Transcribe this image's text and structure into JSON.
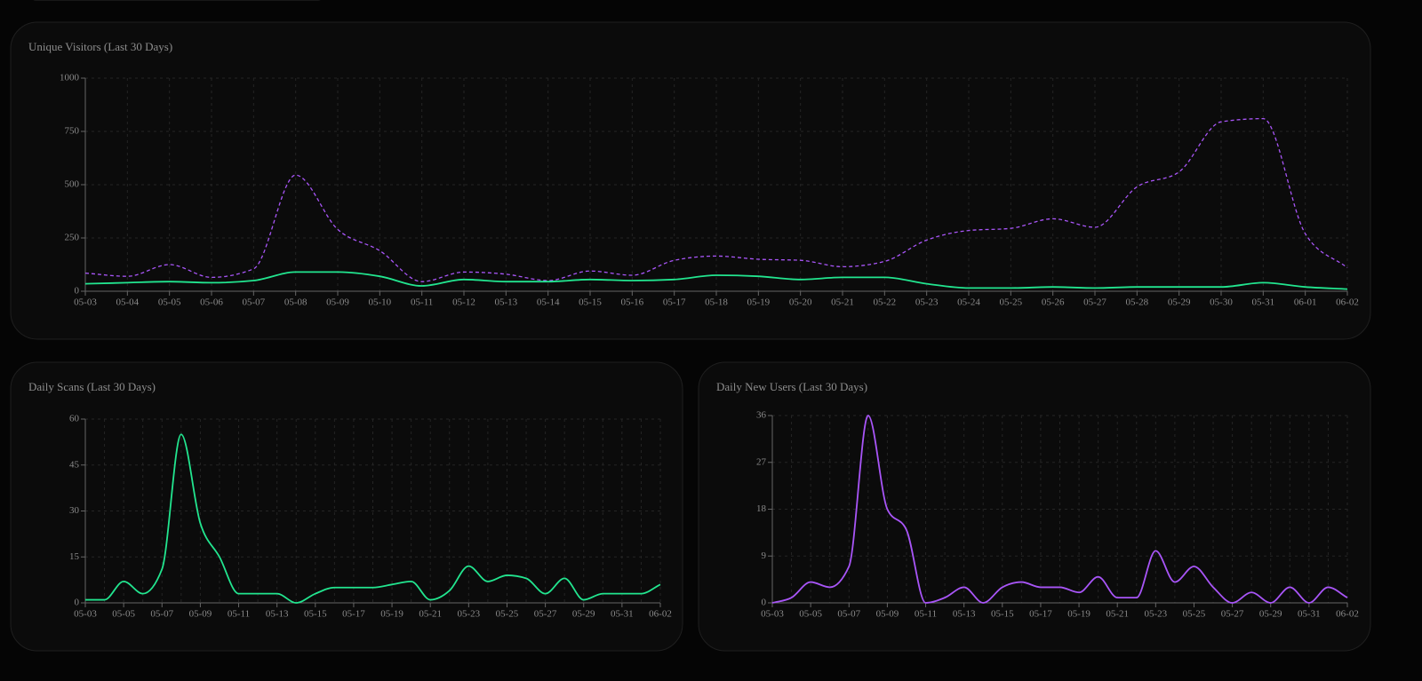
{
  "chart_data": [
    {
      "type": "line",
      "title": "Unique Visitors (Last 30 Days)",
      "categories": [
        "05-03",
        "05-04",
        "05-05",
        "05-06",
        "05-07",
        "05-08",
        "05-09",
        "05-10",
        "05-11",
        "05-12",
        "05-13",
        "05-14",
        "05-15",
        "05-16",
        "05-17",
        "05-18",
        "05-19",
        "05-20",
        "05-21",
        "05-22",
        "05-23",
        "05-24",
        "05-25",
        "05-26",
        "05-27",
        "05-28",
        "05-29",
        "05-30",
        "05-31",
        "06-01",
        "06-02"
      ],
      "series": [
        {
          "color": "#a855f7",
          "line_style": "dashed",
          "values": [
            85,
            70,
            125,
            65,
            105,
            545,
            290,
            190,
            45,
            90,
            80,
            50,
            95,
            75,
            145,
            165,
            150,
            145,
            115,
            140,
            240,
            285,
            295,
            340,
            300,
            490,
            560,
            795,
            810,
            270,
            110
          ]
        },
        {
          "color": "#22e58f",
          "line_style": "solid",
          "values": [
            35,
            40,
            45,
            40,
            50,
            90,
            90,
            70,
            25,
            55,
            45,
            45,
            55,
            50,
            55,
            75,
            70,
            55,
            65,
            65,
            35,
            15,
            15,
            20,
            15,
            20,
            20,
            20,
            40,
            20,
            10
          ]
        }
      ],
      "ylim": [
        0,
        1000
      ],
      "yticks": [
        0,
        250,
        500,
        750,
        1000
      ],
      "grid": true
    },
    {
      "type": "line",
      "title": "Daily Scans (Last 30 Days)",
      "categories": [
        "05-03",
        null,
        "05-05",
        null,
        "05-07",
        null,
        "05-09",
        null,
        "05-11",
        null,
        "05-13",
        null,
        "05-15",
        null,
        "05-17",
        null,
        "05-19",
        null,
        "05-21",
        null,
        "05-23",
        null,
        "05-25",
        null,
        "05-27",
        null,
        "05-29",
        null,
        "05-31",
        null,
        "06-02"
      ],
      "series": [
        {
          "color": "#22e58f",
          "line_style": "solid",
          "values": [
            1,
            1,
            7,
            3,
            11,
            55,
            26,
            15,
            3,
            3,
            3,
            0,
            3,
            5,
            5,
            5,
            6,
            7,
            1,
            4,
            12,
            7,
            9,
            8,
            3,
            8,
            1,
            3,
            3,
            3,
            6
          ]
        }
      ],
      "ylim": [
        0,
        60
      ],
      "yticks": [
        0,
        15,
        30,
        45,
        60
      ],
      "grid": true
    },
    {
      "type": "line",
      "title": "Daily New Users (Last 30 Days)",
      "categories": [
        "05-03",
        null,
        "05-05",
        null,
        "05-07",
        null,
        "05-09",
        null,
        "05-11",
        null,
        "05-13",
        null,
        "05-15",
        null,
        "05-17",
        null,
        "05-19",
        null,
        "05-21",
        null,
        "05-23",
        null,
        "05-25",
        null,
        "05-27",
        null,
        "05-29",
        null,
        "05-31",
        null,
        "06-02"
      ],
      "series": [
        {
          "color": "#a855f7",
          "line_style": "solid",
          "values": [
            0,
            1,
            4,
            3,
            7,
            36,
            18,
            14,
            0,
            1,
            3,
            0,
            3,
            4,
            3,
            3,
            2,
            5,
            1,
            1,
            10,
            4,
            7,
            3,
            0,
            2,
            0,
            3,
            0,
            3,
            1
          ]
        }
      ],
      "ylim": [
        0,
        36
      ],
      "yticks": [
        0,
        9,
        18,
        27,
        36
      ],
      "grid": true
    }
  ]
}
